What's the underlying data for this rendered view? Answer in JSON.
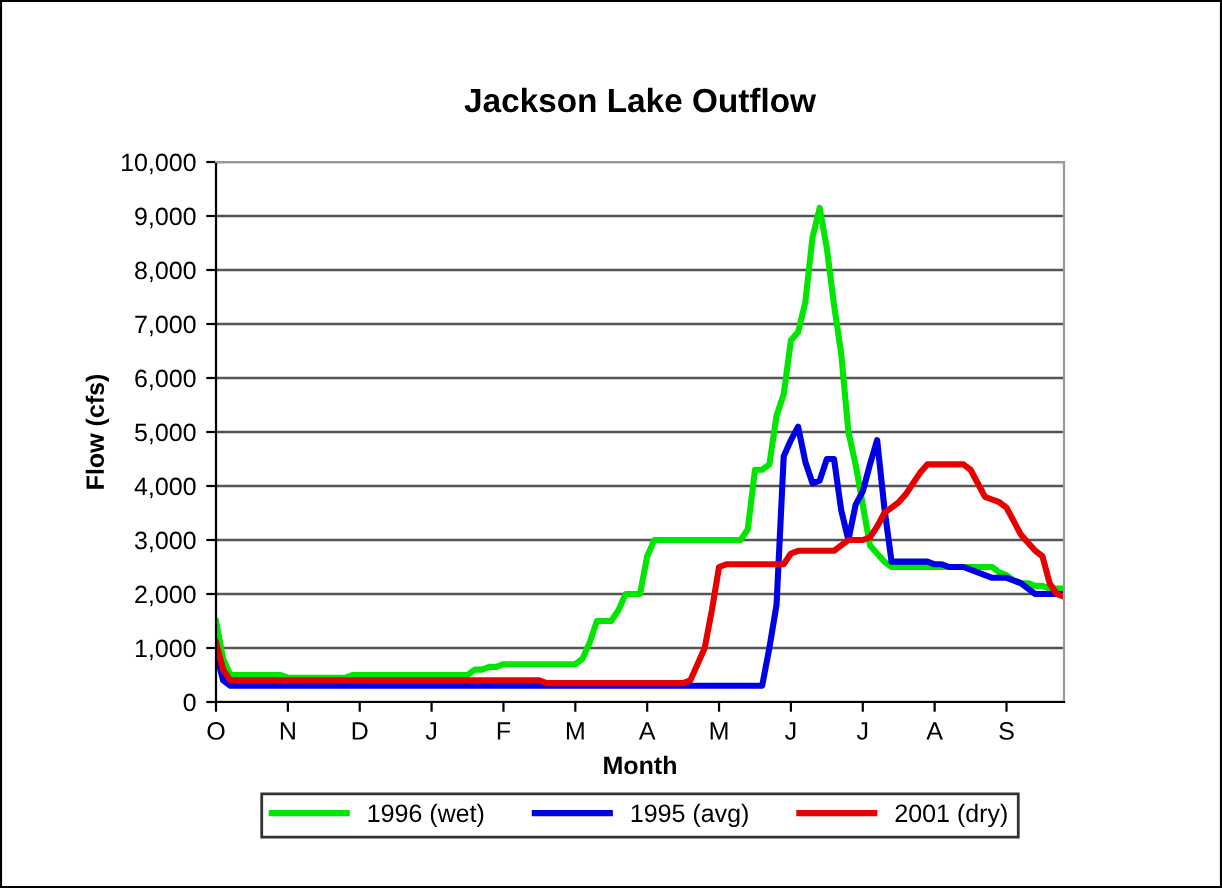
{
  "chart_data": {
    "type": "line",
    "title": "Jackson Lake Outflow",
    "xlabel": "Month",
    "ylabel": "Flow (cfs)",
    "categories": [
      "O",
      null,
      null,
      null,
      null,
      null,
      null,
      null,
      null,
      null,
      "N",
      null,
      null,
      null,
      null,
      null,
      null,
      null,
      null,
      null,
      "D",
      null,
      null,
      null,
      null,
      null,
      null,
      null,
      null,
      null,
      "J",
      null,
      null,
      null,
      null,
      null,
      null,
      null,
      null,
      null,
      "F",
      null,
      null,
      null,
      null,
      null,
      null,
      null,
      null,
      null,
      "M",
      null,
      null,
      null,
      null,
      null,
      null,
      null,
      null,
      null,
      "A",
      null,
      null,
      null,
      null,
      null,
      null,
      null,
      null,
      null,
      "M",
      null,
      null,
      null,
      null,
      null,
      null,
      null,
      null,
      null,
      "J",
      null,
      null,
      null,
      null,
      null,
      null,
      null,
      null,
      null,
      "J",
      null,
      null,
      null,
      null,
      null,
      null,
      null,
      null,
      null,
      "A",
      null,
      null,
      null,
      null,
      null,
      null,
      null,
      null,
      null,
      "S",
      null,
      null,
      null,
      null,
      null,
      null,
      null,
      null
    ],
    "ylim": [
      0,
      10000
    ],
    "yticks": [
      {
        "value": 0,
        "label": "0"
      },
      {
        "value": 1000,
        "label": "1,000"
      },
      {
        "value": 2000,
        "label": "2,000"
      },
      {
        "value": 3000,
        "label": "3,000"
      },
      {
        "value": 4000,
        "label": "4,000"
      },
      {
        "value": 5000,
        "label": "5,000"
      },
      {
        "value": 6000,
        "label": "6,000"
      },
      {
        "value": 7000,
        "label": "7,000"
      },
      {
        "value": 8000,
        "label": "8,000"
      },
      {
        "value": 9000,
        "label": "9,000"
      },
      {
        "value": 10000,
        "label": "10,000"
      }
    ],
    "grid": "y",
    "legend": "bottom",
    "marker": "none",
    "line_style": "solid",
    "series": [
      {
        "name": "1996 (wet)",
        "color": "#00e600",
        "values": [
          1500,
          800,
          500,
          500,
          500,
          500,
          500,
          500,
          500,
          500,
          450,
          450,
          450,
          450,
          450,
          450,
          450,
          450,
          450,
          500,
          500,
          500,
          500,
          500,
          500,
          500,
          500,
          500,
          500,
          500,
          500,
          500,
          500,
          500,
          500,
          500,
          600,
          600,
          650,
          650,
          700,
          700,
          700,
          700,
          700,
          700,
          700,
          700,
          700,
          700,
          700,
          800,
          1100,
          1500,
          1500,
          1500,
          1700,
          2000,
          2000,
          2000,
          2700,
          3000,
          3000,
          3000,
          3000,
          3000,
          3000,
          3000,
          3000,
          3000,
          3000,
          3000,
          3000,
          3000,
          3200,
          4300,
          4300,
          4400,
          5300,
          5700,
          6700,
          6850,
          7400,
          8600,
          9150,
          8400,
          7350,
          6450,
          5000,
          4400,
          3650,
          2900,
          2750,
          2600,
          2500,
          2500,
          2500,
          2500,
          2500,
          2500,
          2500,
          2500,
          2500,
          2500,
          2500,
          2500,
          2500,
          2500,
          2500,
          2400,
          2350,
          2250,
          2200,
          2200,
          2150,
          2150,
          2100,
          2100,
          2100
        ]
      },
      {
        "name": "1995 (avg)",
        "color": "#0000e6",
        "values": [
          900,
          400,
          300,
          300,
          300,
          300,
          300,
          300,
          300,
          300,
          300,
          300,
          300,
          300,
          300,
          300,
          300,
          300,
          300,
          300,
          300,
          300,
          300,
          300,
          300,
          300,
          300,
          300,
          300,
          300,
          300,
          300,
          300,
          300,
          300,
          300,
          300,
          300,
          300,
          300,
          300,
          300,
          300,
          300,
          300,
          300,
          300,
          300,
          300,
          300,
          300,
          300,
          300,
          300,
          300,
          300,
          300,
          300,
          300,
          300,
          300,
          300,
          300,
          300,
          300,
          300,
          300,
          300,
          300,
          300,
          300,
          300,
          300,
          300,
          300,
          300,
          300,
          1000,
          1800,
          4550,
          4850,
          5100,
          4450,
          4050,
          4100,
          4500,
          4500,
          3550,
          3000,
          3650,
          3900,
          4400,
          4850,
          3600,
          2600,
          2600,
          2600,
          2600,
          2600,
          2600,
          2550,
          2550,
          2500,
          2500,
          2500,
          2450,
          2400,
          2350,
          2300,
          2300,
          2300,
          2250,
          2200,
          2100,
          2000,
          2000,
          2000,
          2000,
          2000
        ]
      },
      {
        "name": "2001 (dry)",
        "color": "#e60000",
        "values": [
          1100,
          600,
          400,
          400,
          400,
          400,
          400,
          400,
          400,
          400,
          400,
          400,
          400,
          400,
          400,
          400,
          400,
          400,
          400,
          400,
          400,
          400,
          400,
          400,
          400,
          400,
          400,
          400,
          400,
          400,
          400,
          400,
          400,
          400,
          400,
          400,
          400,
          400,
          400,
          400,
          400,
          400,
          400,
          400,
          400,
          400,
          350,
          350,
          350,
          350,
          350,
          350,
          350,
          350,
          350,
          350,
          350,
          350,
          350,
          350,
          350,
          350,
          350,
          350,
          350,
          350,
          400,
          700,
          1000,
          1700,
          2500,
          2550,
          2550,
          2550,
          2550,
          2550,
          2550,
          2550,
          2550,
          2550,
          2750,
          2800,
          2800,
          2800,
          2800,
          2800,
          2800,
          2900,
          3000,
          3000,
          3000,
          3050,
          3250,
          3500,
          3600,
          3700,
          3850,
          4050,
          4250,
          4400,
          4400,
          4400,
          4400,
          4400,
          4400,
          4300,
          4050,
          3800,
          3750,
          3700,
          3600,
          3350,
          3100,
          2950,
          2800,
          2700,
          2200,
          2000,
          1950
        ]
      }
    ]
  }
}
